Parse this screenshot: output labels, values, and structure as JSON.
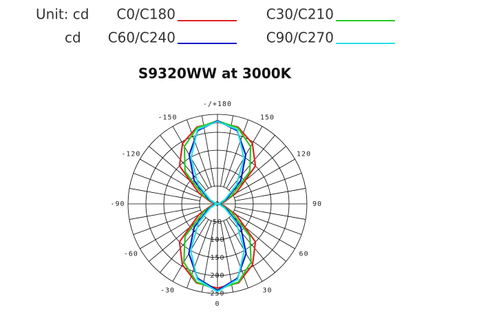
{
  "chart_data": {
    "type": "polar",
    "title": "S9320WW at 3000K",
    "legend_row_prefixes": [
      "Unit: cd",
      "cd"
    ],
    "angles": [
      -180,
      -165,
      -150,
      -135,
      -120,
      -105,
      -90,
      -75,
      -60,
      -45,
      -30,
      -15,
      0,
      15,
      30,
      45,
      60,
      75,
      90,
      105,
      120,
      135,
      150,
      165,
      180
    ],
    "series": [
      {
        "name": "C0/C180",
        "color": "#e02020",
        "values": [
          228,
          222,
          195,
          150,
          60,
          18,
          0,
          18,
          60,
          150,
          196,
          228,
          235,
          228,
          196,
          150,
          60,
          18,
          0,
          18,
          60,
          150,
          195,
          222,
          228
        ]
      },
      {
        "name": "C30/C210",
        "color": "#22cc22",
        "values": [
          232,
          220,
          185,
          128,
          45,
          12,
          0,
          12,
          45,
          128,
          188,
          226,
          240,
          226,
          188,
          128,
          45,
          12,
          0,
          12,
          45,
          128,
          185,
          220,
          232
        ]
      },
      {
        "name": "C60/C240",
        "color": "#0a1ac8",
        "values": [
          232,
          212,
          158,
          92,
          30,
          8,
          0,
          8,
          30,
          92,
          160,
          215,
          242,
          215,
          160,
          92,
          30,
          8,
          0,
          8,
          30,
          92,
          158,
          212,
          232
        ]
      },
      {
        "name": "C90/C270",
        "color": "#22e0e8",
        "values": [
          230,
          215,
          148,
          75,
          24,
          6,
          0,
          6,
          24,
          75,
          150,
          218,
          245,
          218,
          150,
          75,
          24,
          6,
          0,
          6,
          24,
          75,
          148,
          215,
          230
        ]
      }
    ],
    "rlim": [
      0,
      250
    ],
    "rticks": [
      0,
      50,
      100,
      150,
      200,
      250
    ],
    "theta_ticks": [
      0,
      30,
      60,
      90,
      120,
      150,
      {
        "value": 180,
        "label": "-/+180"
      },
      -150,
      -120,
      -90,
      -60,
      -30
    ]
  }
}
